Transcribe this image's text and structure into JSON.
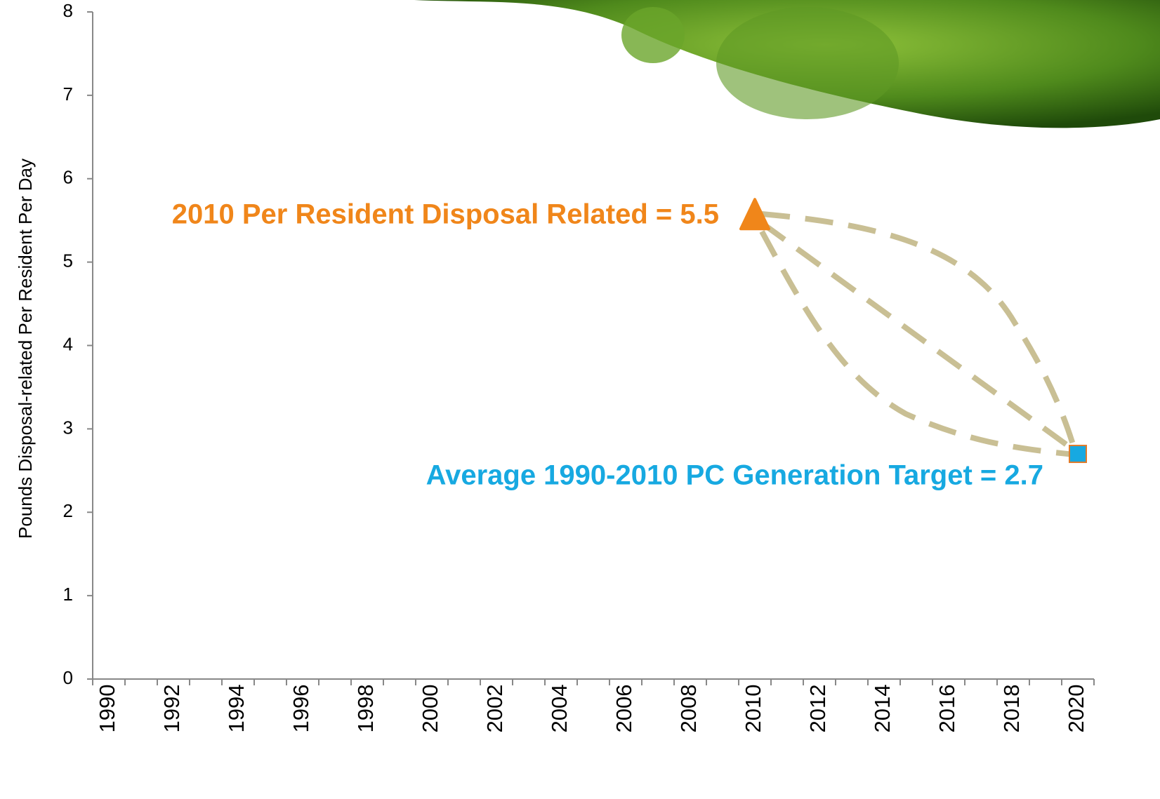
{
  "chart_data": {
    "type": "scatter",
    "y_label": "Pounds Disposal-related Per Resident Per Day",
    "categories": [
      "1990",
      null,
      "1992",
      null,
      "1994",
      null,
      "1996",
      null,
      "1998",
      null,
      "2000",
      null,
      "2002",
      null,
      "2004",
      null,
      "2006",
      null,
      "2008",
      null,
      "2010",
      null,
      "2012",
      null,
      "2014",
      null,
      "2016",
      null,
      "2018",
      null,
      "2020"
    ],
    "series": [
      {
        "color": "#f0861a",
        "marker": "triangle",
        "values": [
          null,
          null,
          null,
          null,
          null,
          null,
          null,
          null,
          null,
          null,
          null,
          null,
          null,
          null,
          null,
          null,
          null,
          null,
          null,
          null,
          5.5,
          null,
          null,
          null,
          null,
          null,
          null,
          null,
          null,
          null,
          null
        ]
      },
      {
        "color": "#17a9e1",
        "marker": "square",
        "values": [
          null,
          null,
          null,
          null,
          null,
          null,
          null,
          null,
          null,
          null,
          null,
          null,
          null,
          null,
          null,
          null,
          null,
          null,
          null,
          null,
          null,
          null,
          null,
          null,
          null,
          null,
          null,
          null,
          null,
          null,
          2.7
        ]
      }
    ],
    "annotations": [
      "2010 Per Resident Disposal Related = 5.5",
      "Average 1990-2010 PC Generation  Target = 2.7"
    ],
    "ylim": [
      0,
      8
    ],
    "yticks": [
      0,
      1,
      2,
      3,
      4,
      5,
      6,
      7,
      8
    ],
    "grid": false
  }
}
